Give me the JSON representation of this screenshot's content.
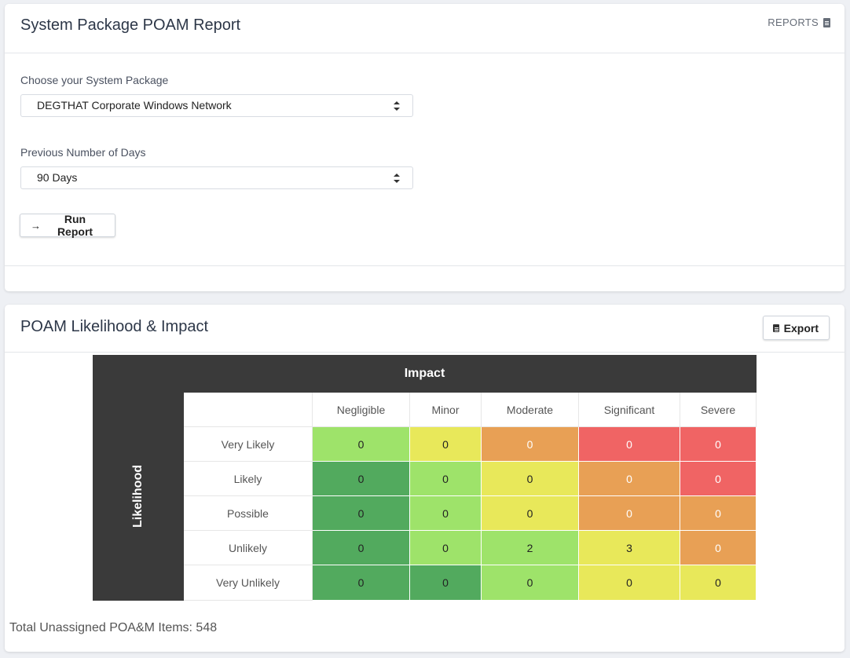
{
  "report": {
    "title": "System Package POAM Report",
    "reports_link": "REPORTS",
    "system_label": "Choose your System Package",
    "system_value": "DEGTHAT Corporate Windows Network",
    "days_label": "Previous Number of Days",
    "days_value": "90 Days",
    "run_button": "Run Report"
  },
  "matrix_card": {
    "title": "POAM Likelihood & Impact",
    "export_button": "Export",
    "impact_header": "Impact",
    "likelihood_header": "Likelihood",
    "columns": [
      "Negligible",
      "Minor",
      "Moderate",
      "Significant",
      "Severe"
    ],
    "rows": [
      {
        "label": "Very Likely",
        "values": [
          "0",
          "0",
          "0",
          "0",
          "0"
        ]
      },
      {
        "label": "Likely",
        "values": [
          "0",
          "0",
          "0",
          "0",
          "0"
        ]
      },
      {
        "label": "Possible",
        "values": [
          "0",
          "0",
          "0",
          "0",
          "0"
        ]
      },
      {
        "label": "Unlikely",
        "values": [
          "0",
          "0",
          "2",
          "3",
          "0"
        ]
      },
      {
        "label": "Very Unlikely",
        "values": [
          "0",
          "0",
          "0",
          "0",
          "0"
        ]
      }
    ],
    "cell_colors": [
      [
        "#9ee36a",
        "#e8e85a",
        "#e8a055",
        "#f06464",
        "#f06464"
      ],
      [
        "#52aa5e",
        "#9ee36a",
        "#e8e85a",
        "#e8a055",
        "#f06464"
      ],
      [
        "#52aa5e",
        "#9ee36a",
        "#e8e85a",
        "#e8a055",
        "#e8a055"
      ],
      [
        "#52aa5e",
        "#9ee36a",
        "#9ee36a",
        "#e8e85a",
        "#e8a055"
      ],
      [
        "#52aa5e",
        "#52aa5e",
        "#9ee36a",
        "#e8e85a",
        "#e8e85a"
      ]
    ],
    "total_text": "Total Unassigned POA&M Items: 548"
  }
}
